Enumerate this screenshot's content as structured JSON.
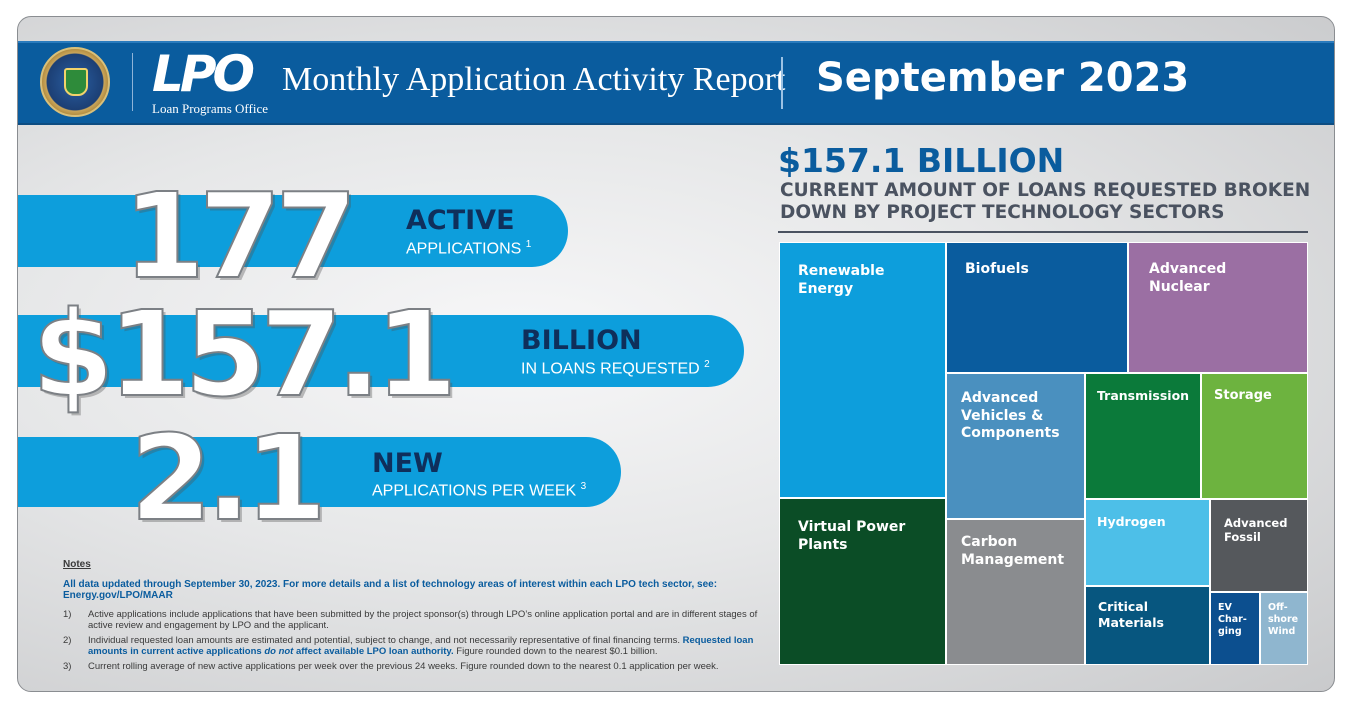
{
  "header": {
    "logo_mark": "LPO",
    "logo_subtitle": "Loan Programs Office",
    "report_title": "Monthly Application Activity Report",
    "report_month": "September 2023"
  },
  "stats": [
    {
      "number": "177",
      "headline": "ACTIVE",
      "sub": "APPLICATIONS",
      "footnote": "1"
    },
    {
      "number": "$157.1",
      "headline": "BILLION",
      "sub": "IN LOANS REQUESTED",
      "footnote": "2"
    },
    {
      "number": "2.1",
      "headline": "NEW",
      "sub": "APPLICATIONS PER WEEK",
      "footnote": "3"
    }
  ],
  "notes": {
    "title": "Notes",
    "intro": "All data updated through September 30, 2023. For more details and a list of technology areas of interest within each LPO tech sector, see: Energy.gov/LPO/MAAR",
    "items": [
      {
        "num": "1)",
        "text": "Active applications include applications that have been submitted by the project sponsor(s) through LPO’s online application portal and are in different stages of active review and engagement by LPO and the applicant."
      },
      {
        "num": "2)",
        "text_a": "Individual requested loan amounts are estimated and potential, subject to change, and not necessarily representative of final financing terms.",
        "text_b": "Requested loan amounts in current active applications",
        "text_c": "do not",
        "text_d": "affect available LPO loan authority.",
        "text_e": "Figure rounded down to the nearest $0.1 billion."
      },
      {
        "num": "3)",
        "text": "Current rolling average of new active applications per week over the previous 24 weeks. Figure rounded down to the nearest 0.1 application per week."
      }
    ]
  },
  "breakdown": {
    "amount": "$157.1 BILLION",
    "subtitle": "CURRENT AMOUNT OF LOANS REQUESTED BROKEN DOWN BY PROJECT TECHNOLOGY SECTORS"
  },
  "sectors": [
    {
      "name": "Renewable Energy",
      "label": "Renewable\nEnergy",
      "color": "#0d9edc"
    },
    {
      "name": "Biofuels",
      "label": "Biofuels",
      "color": "#0a5c9e"
    },
    {
      "name": "Advanced Nuclear",
      "label": "Advanced\nNuclear",
      "color": "#9b6fa3"
    },
    {
      "name": "Advanced Vehicles & Components",
      "label": "Advanced\nVehicles &\nComponents",
      "color": "#4a90bf"
    },
    {
      "name": "Transmission",
      "label": "Transmission",
      "color": "#0b7a3a"
    },
    {
      "name": "Storage",
      "label": "Storage",
      "color": "#6db33f"
    },
    {
      "name": "Virtual Power Plants",
      "label": "Virtual Power\nPlants",
      "color": "#0b4d26"
    },
    {
      "name": "Carbon Management",
      "label": "Carbon\nManagement",
      "color": "#8a8c8f"
    },
    {
      "name": "Hydrogen",
      "label": "Hydrogen",
      "color": "#4dbfe8"
    },
    {
      "name": "Advanced Fossil",
      "label": "Advanced\nFossil",
      "color": "#55585c"
    },
    {
      "name": "Critical Materials",
      "label": "Critical\nMaterials",
      "color": "#07567f"
    },
    {
      "name": "EV Charging",
      "label": "EV\nChar-\nging",
      "color": "#0c4f8f"
    },
    {
      "name": "Offshore Wind",
      "label": "Off-\nshore\nWind",
      "color": "#8fb6cf"
    }
  ]
}
